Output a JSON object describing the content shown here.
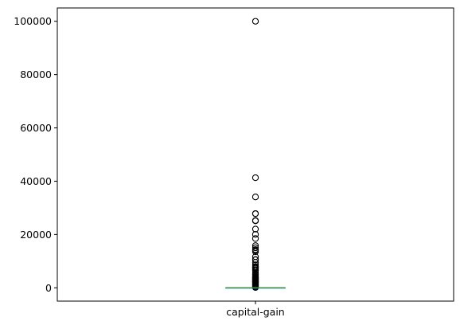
{
  "chart_data": {
    "type": "box",
    "categories": [
      "capital-gain"
    ],
    "ylim": [
      -5000,
      105000
    ],
    "yticks": [
      0,
      20000,
      40000,
      60000,
      80000,
      100000
    ],
    "ytick_labels": [
      "0",
      "20000",
      "40000",
      "60000",
      "80000",
      "100000"
    ],
    "grid": false,
    "median_color": "#2ca02c",
    "box": {
      "min": 0,
      "q1": 0,
      "median": 0,
      "q3": 0,
      "max": 0
    },
    "outliers": [
      99999,
      41310,
      34095,
      27828,
      27828,
      25236,
      25124,
      22040,
      20051,
      18481,
      15831,
      15024,
      14344,
      14084,
      13550,
      11678,
      10605,
      10520,
      9562,
      8614,
      7978,
      7688,
      7430,
      7298,
      6849,
      6514,
      6418,
      5721,
      5178,
      5013,
      4787,
      4386,
      4064,
      3942,
      3818,
      3674,
      3464,
      3325,
      3137,
      3103,
      2907,
      2829,
      2597,
      2407,
      2202,
      2174,
      2105,
      1848,
      1506,
      1424,
      1173,
      1086,
      914,
      594,
      401,
      114
    ]
  }
}
